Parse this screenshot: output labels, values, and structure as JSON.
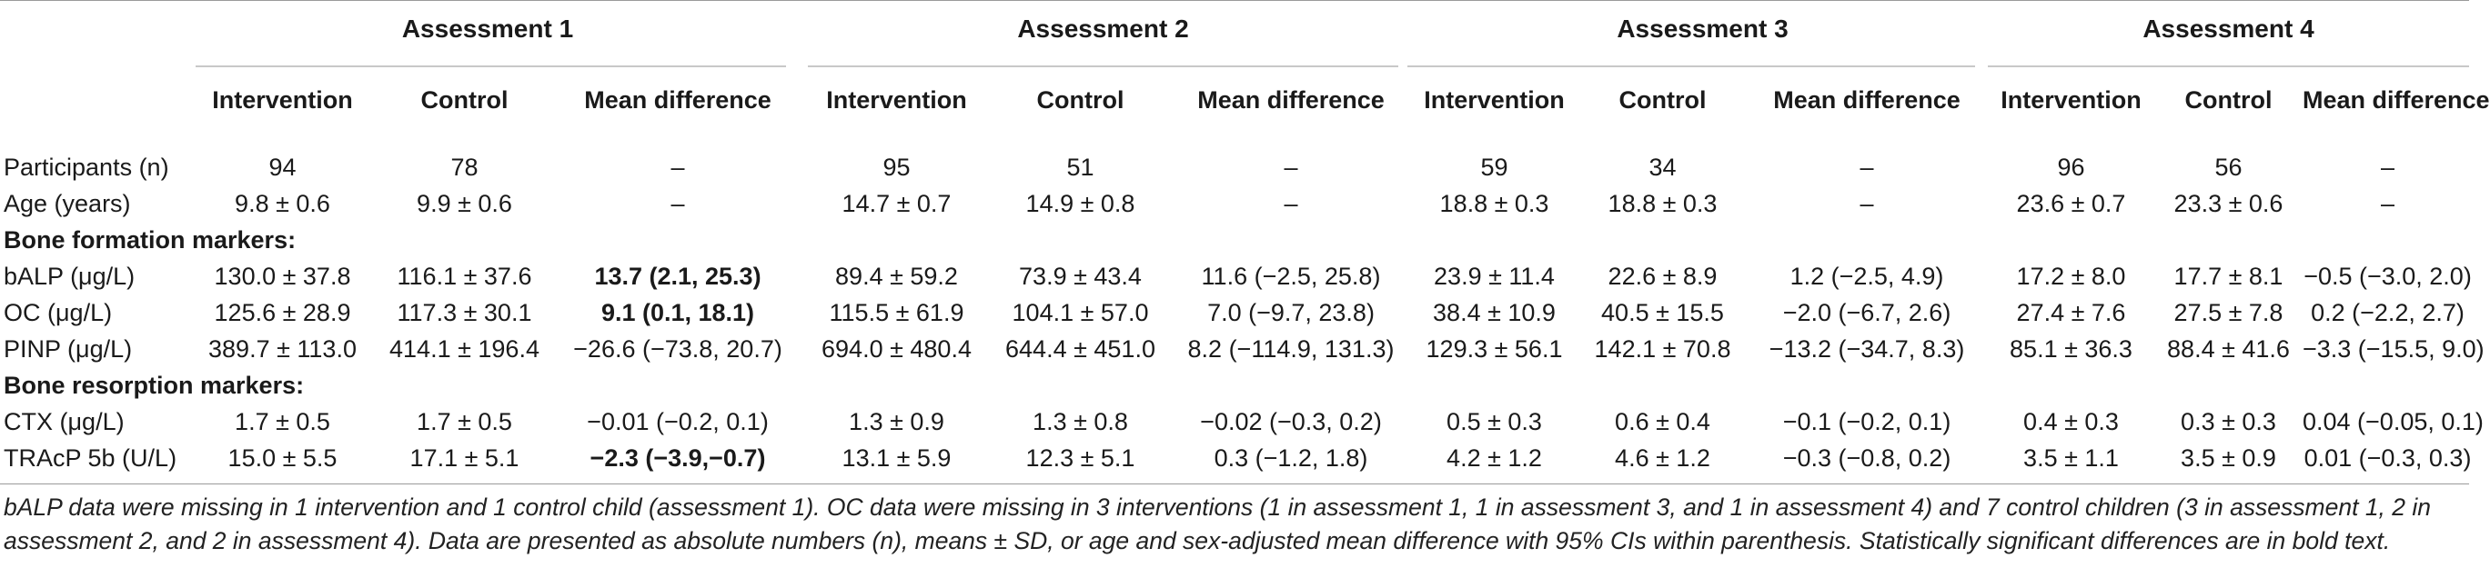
{
  "groups": [
    {
      "label": "Assessment 1"
    },
    {
      "label": "Assessment 2"
    },
    {
      "label": "Assessment 3"
    },
    {
      "label": "Assessment 4"
    }
  ],
  "subheaders": [
    "Intervention",
    "Control",
    "Mean difference"
  ],
  "sections": {
    "formation": "Bone formation markers:",
    "resorption": "Bone resorption markers:"
  },
  "rows": {
    "participants": {
      "label": "Participants (n)",
      "cells": [
        "94",
        "78",
        "–",
        "95",
        "51",
        "–",
        "59",
        "34",
        "–",
        "96",
        "56",
        "–"
      ]
    },
    "age": {
      "label": "Age (years)",
      "cells": [
        "9.8 ± 0.6",
        "9.9 ± 0.6",
        "–",
        "14.7 ± 0.7",
        "14.9 ± 0.8",
        "–",
        "18.8 ± 0.3",
        "18.8 ± 0.3",
        "–",
        "23.6 ± 0.7",
        "23.3 ± 0.6",
        "–"
      ]
    },
    "balp": {
      "label": "bALP (μg/L)",
      "cells": [
        "130.0 ± 37.8",
        "116.1 ± 37.6",
        "13.7 (2.1, 25.3)",
        "89.4 ± 59.2",
        "73.9 ± 43.4",
        "11.6 (−2.5, 25.8)",
        "23.9 ± 11.4",
        "22.6 ± 8.9",
        "1.2 (−2.5, 4.9)",
        "17.2 ± 8.0",
        "17.7 ± 8.1",
        "−0.5 (−3.0, 2.0)"
      ]
    },
    "oc": {
      "label": "OC (μg/L)",
      "cells": [
        "125.6 ± 28.9",
        "117.3 ± 30.1",
        "9.1 (0.1, 18.1)",
        "115.5 ± 61.9",
        "104.1 ± 57.0",
        "7.0 (−9.7, 23.8)",
        "38.4 ± 10.9",
        "40.5 ± 15.5",
        "−2.0 (−6.7, 2.6)",
        "27.4 ± 7.6",
        "27.5 ± 7.8",
        "0.2 (−2.2, 2.7)"
      ]
    },
    "pinp": {
      "label": "PINP (μg/L)",
      "cells": [
        "389.7 ± 113.0",
        "414.1 ± 196.4",
        "−26.6 (−73.8, 20.7)",
        "694.0 ± 480.4",
        "644.4 ± 451.0",
        "8.2 (−114.9, 131.3)",
        "129.3 ± 56.1",
        "142.1 ± 70.8",
        "−13.2 (−34.7, 8.3)",
        "85.1 ± 36.3",
        "88.4 ± 41.6",
        "−3.3 (−15.5, 9.0)"
      ]
    },
    "ctx": {
      "label": "CTX (μg/L)",
      "cells": [
        "1.7 ± 0.5",
        "1.7 ± 0.5",
        "−0.01 (−0.2, 0.1)",
        "1.3 ± 0.9",
        "1.3 ± 0.8",
        "−0.02 (−0.3, 0.2)",
        "0.5 ± 0.3",
        "0.6 ± 0.4",
        "−0.1 (−0.2, 0.1)",
        "0.4 ± 0.3",
        "0.3 ± 0.3",
        "0.04 (−0.05, 0.1)"
      ]
    },
    "tracp": {
      "label": "TRAcP 5b (U/L)",
      "cells": [
        "15.0 ± 5.5",
        "17.1 ± 5.1",
        "−2.3 (−3.9,−0.7)",
        "13.1 ± 5.9",
        "12.3 ± 5.1",
        "0.3 (−1.2, 1.8)",
        "4.2 ± 1.2",
        "4.6 ± 1.2",
        "−0.3 (−0.8, 0.2)",
        "3.5 ± 1.1",
        "3.5 ± 0.9",
        "0.01 (−0.3, 0.3)"
      ]
    }
  },
  "footnote": "bALP data were missing in 1 intervention and 1 control child (assessment 1). OC data were missing in 3 interventions (1 in assessment 1, 1 in assessment 3, and 1 in assessment 4) and 7 control children (3 in assessment 1, 2 in assessment 2, and 2 in assessment 4). Data are presented as absolute numbers (n), means ± SD, or age and sex-adjusted mean difference with 95% CIs within parenthesis. Statistically significant differences are in bold text."
}
